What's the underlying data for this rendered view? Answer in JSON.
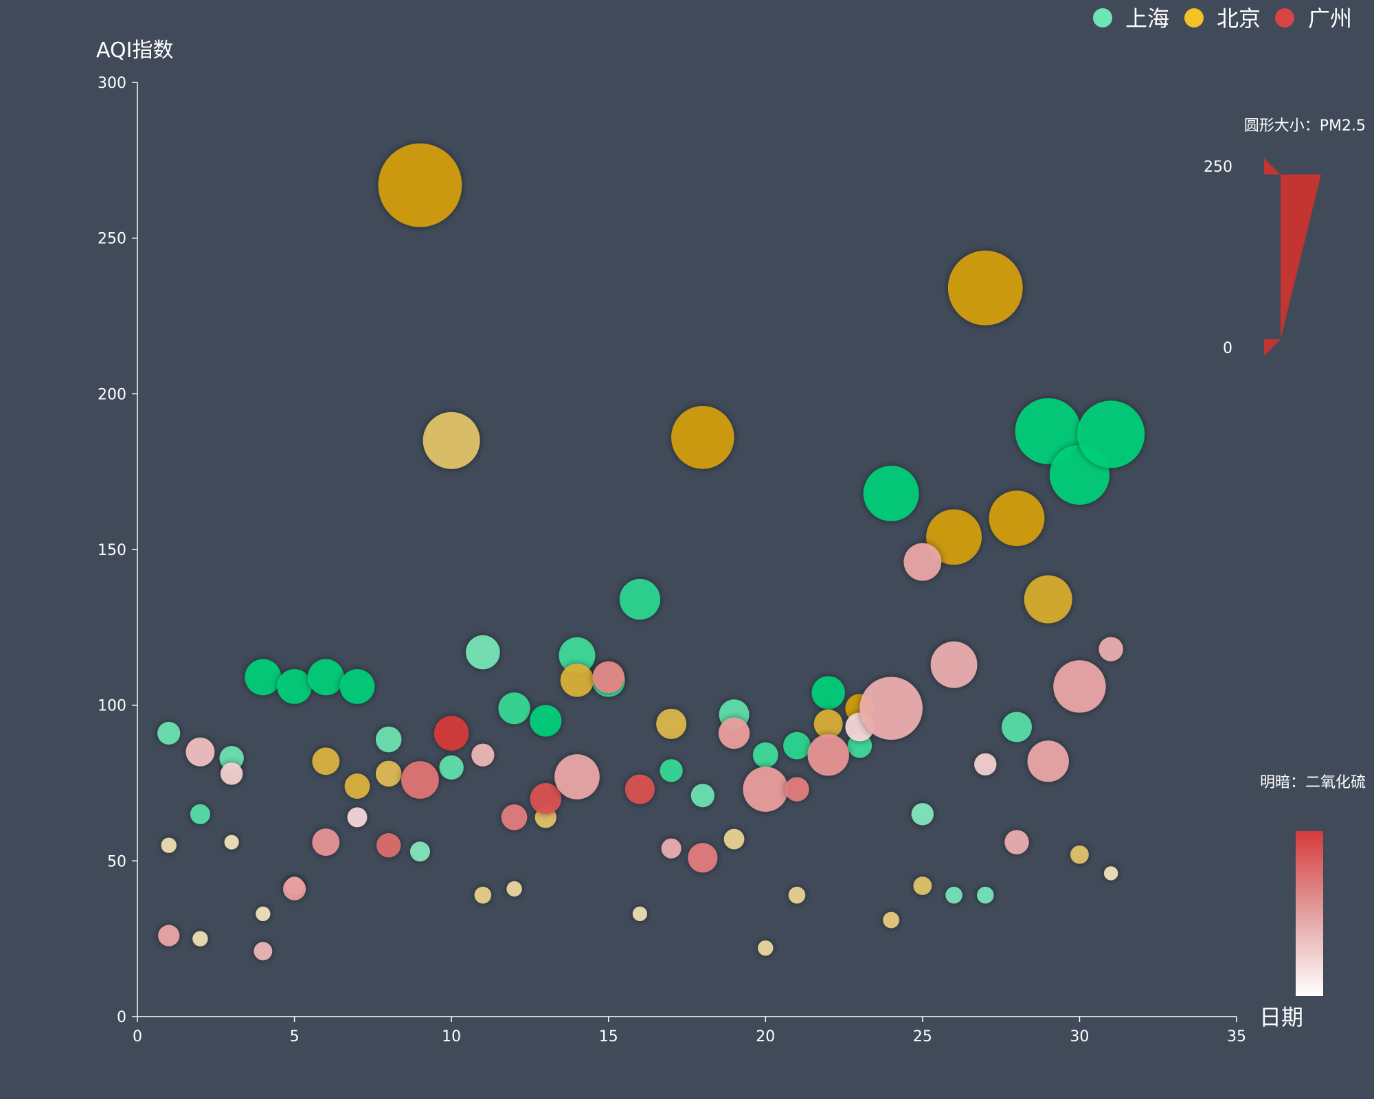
{
  "chart_data": {
    "type": "scatter",
    "xlabel": "日期",
    "ylabel": "AQI指数",
    "xlim": [
      0,
      35
    ],
    "ylim": [
      0,
      300
    ],
    "x_ticks": [
      0,
      5,
      10,
      15,
      20,
      25,
      30,
      35
    ],
    "y_ticks": [
      0,
      50,
      100,
      150,
      200,
      250,
      300
    ],
    "grid": false,
    "legend": {
      "placement": "top-right",
      "items": [
        "上海",
        "北京",
        "广州"
      ]
    },
    "visual_map_size": {
      "title": "圆形大小：PM2.5",
      "min_label": "0",
      "max_label": "250",
      "min": 0,
      "max": 250
    },
    "visual_map_color": {
      "title": "明暗：二氧化硫"
    },
    "series": [
      {
        "name": "上海",
        "color": "#00d07a",
        "points": [
          {
            "x": 1,
            "y": 91,
            "pm": 40,
            "so2": 0.5
          },
          {
            "x": 2,
            "y": 65,
            "pm": 30,
            "so2": 0.6
          },
          {
            "x": 3,
            "y": 83,
            "pm": 45,
            "so2": 0.5
          },
          {
            "x": 4,
            "y": 109,
            "pm": 85,
            "so2": 1.0
          },
          {
            "x": 5,
            "y": 106,
            "pm": 80,
            "so2": 1.0
          },
          {
            "x": 6,
            "y": 109,
            "pm": 85,
            "so2": 1.0
          },
          {
            "x": 7,
            "y": 106,
            "pm": 80,
            "so2": 1.0
          },
          {
            "x": 8,
            "y": 89,
            "pm": 50,
            "so2": 0.5
          },
          {
            "x": 9,
            "y": 53,
            "pm": 30,
            "so2": 0.4
          },
          {
            "x": 10,
            "y": 80,
            "pm": 45,
            "so2": 0.55
          },
          {
            "x": 11,
            "y": 117,
            "pm": 78,
            "so2": 0.45
          },
          {
            "x": 12,
            "y": 99,
            "pm": 70,
            "so2": 0.75
          },
          {
            "x": 13,
            "y": 95,
            "pm": 70,
            "so2": 1.0
          },
          {
            "x": 14,
            "y": 116,
            "pm": 85,
            "so2": 0.7
          },
          {
            "x": 15,
            "y": 108,
            "pm": 75,
            "so2": 0.7
          },
          {
            "x": 16,
            "y": 134,
            "pm": 100,
            "so2": 0.8
          },
          {
            "x": 17,
            "y": 79,
            "pm": 40,
            "so2": 0.75
          },
          {
            "x": 18,
            "y": 71,
            "pm": 42,
            "so2": 0.5
          },
          {
            "x": 19,
            "y": 97,
            "pm": 65,
            "so2": 0.55
          },
          {
            "x": 20,
            "y": 84,
            "pm": 48,
            "so2": 0.7
          },
          {
            "x": 21,
            "y": 87,
            "pm": 55,
            "so2": 0.8
          },
          {
            "x": 22,
            "y": 104,
            "pm": 75,
            "so2": 1.0
          },
          {
            "x": 23,
            "y": 87,
            "pm": 45,
            "so2": 0.7
          },
          {
            "x": 24,
            "y": 168,
            "pm": 150,
            "so2": 1.0
          },
          {
            "x": 25,
            "y": 65,
            "pm": 38,
            "so2": 0.4
          },
          {
            "x": 26,
            "y": 39,
            "pm": 20,
            "so2": 0.45
          },
          {
            "x": 27,
            "y": 39,
            "pm": 20,
            "so2": 0.45
          },
          {
            "x": 28,
            "y": 93,
            "pm": 65,
            "so2": 0.6
          },
          {
            "x": 29,
            "y": 188,
            "pm": 185,
            "so2": 1.0
          },
          {
            "x": 30,
            "y": 174,
            "pm": 165,
            "so2": 1.0
          },
          {
            "x": 31,
            "y": 187,
            "pm": 190,
            "so2": 1.0
          }
        ]
      },
      {
        "name": "北京",
        "color": "#d4a00e",
        "points": [
          {
            "x": 1,
            "y": 55,
            "pm": 15,
            "so2": 0.2
          },
          {
            "x": 2,
            "y": 25,
            "pm": 15,
            "so2": 0.2
          },
          {
            "x": 3,
            "y": 56,
            "pm": 12,
            "so2": 0.15
          },
          {
            "x": 4,
            "y": 33,
            "pm": 12,
            "so2": 0.15
          },
          {
            "x": 5,
            "y": 42,
            "pm": 25,
            "so2": 0.2
          },
          {
            "x": 6,
            "y": 82,
            "pm": 55,
            "so2": 0.75
          },
          {
            "x": 7,
            "y": 74,
            "pm": 48,
            "so2": 0.75
          },
          {
            "x": 8,
            "y": 78,
            "pm": 50,
            "so2": 0.65
          },
          {
            "x": 9,
            "y": 267,
            "pm": 245,
            "so2": 1.0
          },
          {
            "x": 10,
            "y": 185,
            "pm": 155,
            "so2": 0.55
          },
          {
            "x": 11,
            "y": 39,
            "pm": 20,
            "so2": 0.4
          },
          {
            "x": 12,
            "y": 41,
            "pm": 15,
            "so2": 0.3
          },
          {
            "x": 13,
            "y": 64,
            "pm": 35,
            "so2": 0.55
          },
          {
            "x": 14,
            "y": 108,
            "pm": 75,
            "so2": 0.8
          },
          {
            "x": 16,
            "y": 33,
            "pm": 12,
            "so2": 0.2
          },
          {
            "x": 17,
            "y": 94,
            "pm": 65,
            "so2": 0.7
          },
          {
            "x": 18,
            "y": 186,
            "pm": 175,
            "so2": 1.0
          },
          {
            "x": 19,
            "y": 57,
            "pm": 32,
            "so2": 0.35
          },
          {
            "x": 20,
            "y": 22,
            "pm": 15,
            "so2": 0.3
          },
          {
            "x": 21,
            "y": 39,
            "pm": 20,
            "so2": 0.35
          },
          {
            "x": 22,
            "y": 94,
            "pm": 60,
            "so2": 0.8
          },
          {
            "x": 23,
            "y": 99,
            "pm": 60,
            "so2": 1.0
          },
          {
            "x": 24,
            "y": 31,
            "pm": 18,
            "so2": 0.45
          },
          {
            "x": 25,
            "y": 42,
            "pm": 25,
            "so2": 0.55
          },
          {
            "x": 26,
            "y": 154,
            "pm": 150,
            "so2": 1.0
          },
          {
            "x": 27,
            "y": 234,
            "pm": 215,
            "so2": 1.0
          },
          {
            "x": 28,
            "y": 160,
            "pm": 150,
            "so2": 1.0
          },
          {
            "x": 29,
            "y": 134,
            "pm": 125,
            "so2": 0.85
          },
          {
            "x": 30,
            "y": 52,
            "pm": 25,
            "so2": 0.55
          },
          {
            "x": 31,
            "y": 46,
            "pm": 10,
            "so2": 0.15
          }
        ]
      },
      {
        "name": "广州",
        "color": "#d63a3a",
        "points": [
          {
            "x": 1,
            "y": 26,
            "pm": 35,
            "so2": 0.35
          },
          {
            "x": 2,
            "y": 85,
            "pm": 60,
            "so2": 0.2
          },
          {
            "x": 3,
            "y": 78,
            "pm": 38,
            "so2": 0.1
          },
          {
            "x": 4,
            "y": 21,
            "pm": 25,
            "so2": 0.25
          },
          {
            "x": 5,
            "y": 41,
            "pm": 40,
            "so2": 0.4
          },
          {
            "x": 6,
            "y": 56,
            "pm": 55,
            "so2": 0.45
          },
          {
            "x": 7,
            "y": 64,
            "pm": 30,
            "so2": 0.05
          },
          {
            "x": 8,
            "y": 55,
            "pm": 45,
            "so2": 0.7
          },
          {
            "x": 9,
            "y": 76,
            "pm": 90,
            "so2": 0.65
          },
          {
            "x": 10,
            "y": 91,
            "pm": 80,
            "so2": 1.0
          },
          {
            "x": 11,
            "y": 84,
            "pm": 40,
            "so2": 0.25
          },
          {
            "x": 12,
            "y": 64,
            "pm": 50,
            "so2": 0.6
          },
          {
            "x": 13,
            "y": 70,
            "pm": 68,
            "so2": 0.85
          },
          {
            "x": 14,
            "y": 77,
            "pm": 115,
            "so2": 0.35
          },
          {
            "x": 15,
            "y": 109,
            "pm": 70,
            "so2": 0.55
          },
          {
            "x": 16,
            "y": 73,
            "pm": 63,
            "so2": 0.85
          },
          {
            "x": 17,
            "y": 54,
            "pm": 30,
            "so2": 0.3
          },
          {
            "x": 18,
            "y": 51,
            "pm": 63,
            "so2": 0.6
          },
          {
            "x": 19,
            "y": 91,
            "pm": 68,
            "so2": 0.4
          },
          {
            "x": 20,
            "y": 73,
            "pm": 115,
            "so2": 0.4
          },
          {
            "x": 21,
            "y": 73,
            "pm": 45,
            "so2": 0.6
          },
          {
            "x": 22,
            "y": 84,
            "pm": 103,
            "so2": 0.45
          },
          {
            "x": 23,
            "y": 93,
            "pm": 60,
            "so2": 0.05
          },
          {
            "x": 24,
            "y": 99,
            "pm": 175,
            "so2": 0.3
          },
          {
            "x": 25,
            "y": 146,
            "pm": 90,
            "so2": 0.35
          },
          {
            "x": 26,
            "y": 113,
            "pm": 120,
            "so2": 0.3
          },
          {
            "x": 27,
            "y": 81,
            "pm": 38,
            "so2": 0.1
          },
          {
            "x": 28,
            "y": 56,
            "pm": 45,
            "so2": 0.3
          },
          {
            "x": 29,
            "y": 82,
            "pm": 103,
            "so2": 0.35
          },
          {
            "x": 30,
            "y": 106,
            "pm": 140,
            "so2": 0.35
          },
          {
            "x": 31,
            "y": 118,
            "pm": 45,
            "so2": 0.3
          }
        ]
      }
    ]
  }
}
